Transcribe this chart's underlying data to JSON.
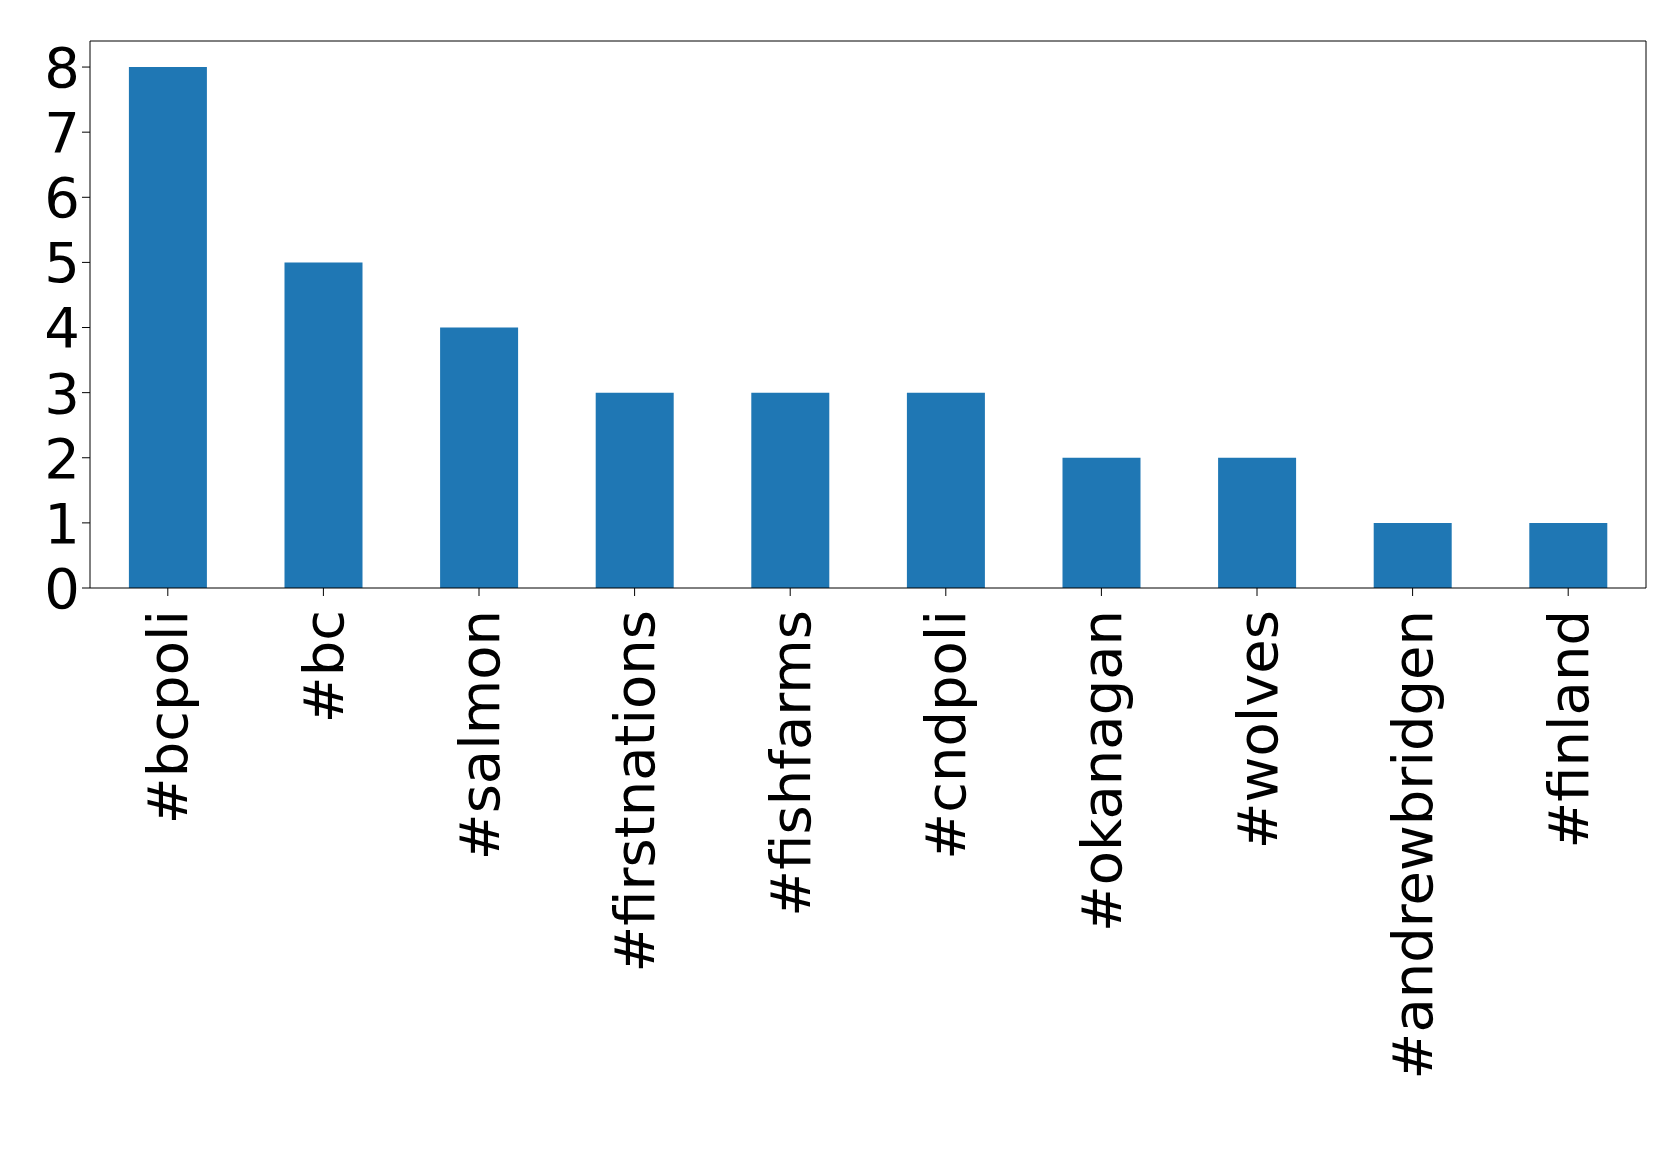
{
  "chart_data": {
    "type": "bar",
    "categories": [
      "#bcpoli",
      "#bc",
      "#salmon",
      "#firstnations",
      "#fishfarms",
      "#cndpoli",
      "#okanagan",
      "#wolves",
      "#andrewbridgen",
      "#finland"
    ],
    "values": [
      8,
      5,
      4,
      3,
      3,
      3,
      2,
      2,
      1,
      1
    ],
    "color": "#1f77b4",
    "ylim": [
      0,
      8.4
    ],
    "yticks": [
      0,
      1,
      2,
      3,
      4,
      5,
      6,
      7,
      8
    ],
    "grid": false,
    "legend": false
  }
}
